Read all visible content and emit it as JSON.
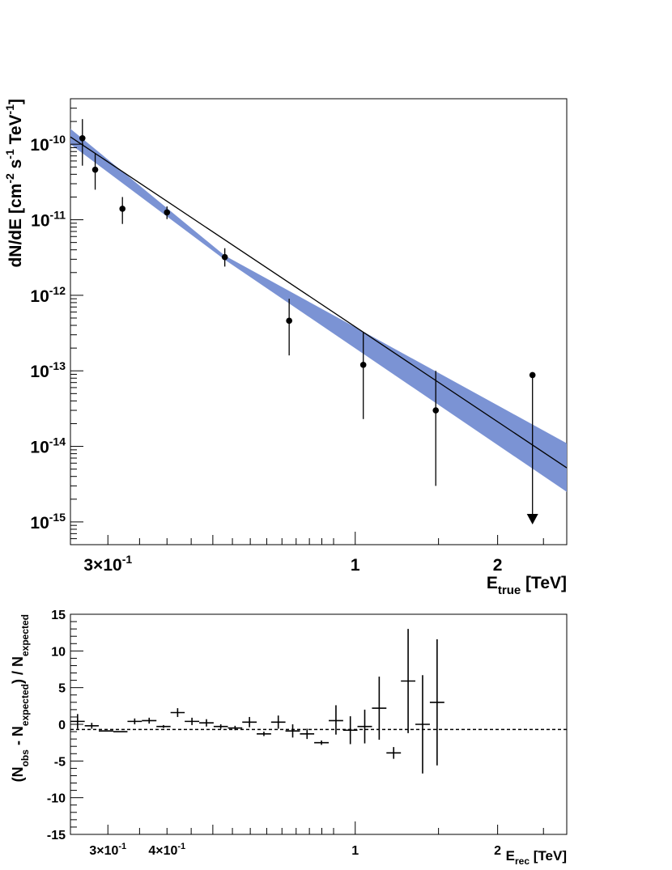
{
  "chart_data": [
    {
      "type": "scatter",
      "title": "",
      "xlabel": "E",
      "xlabel_sub": "true",
      "xlabel_unit": "[TeV]",
      "ylabel": "dN/dE [cm",
      "ylabel_parts": [
        "dN/dE [cm",
        "-2",
        " s",
        "-1",
        " TeV",
        "-1",
        "]"
      ],
      "xscale": "log",
      "yscale": "log",
      "xlim": [
        0.25,
        2.8
      ],
      "ylim": [
        5e-16,
        4e-10
      ],
      "x_tick_labels": [
        {
          "value": 0.3,
          "mant": "3",
          "exp": "-1"
        },
        {
          "value": 1,
          "text": "1"
        },
        {
          "value": 2,
          "text": "2"
        }
      ],
      "y_tick_labels": [
        {
          "value": 1e-15,
          "exp": "-15"
        },
        {
          "value": 1e-14,
          "exp": "-14"
        },
        {
          "value": 1e-13,
          "exp": "-13"
        },
        {
          "value": 1e-12,
          "exp": "-12"
        },
        {
          "value": 1e-11,
          "exp": "-11"
        },
        {
          "value": 1e-10,
          "exp": "-10"
        }
      ],
      "points": [
        {
          "x": 0.265,
          "y": 1.2e-10,
          "ylo": 5.2e-11,
          "yhi": 2.15e-10
        },
        {
          "x": 0.282,
          "y": 4.6e-11,
          "ylo": 2.5e-11,
          "yhi": 7.5e-11
        },
        {
          "x": 0.322,
          "y": 1.4e-11,
          "ylo": 8.8e-12,
          "yhi": 2e-11
        },
        {
          "x": 0.4,
          "y": 1.25e-11,
          "ylo": 1.02e-11,
          "yhi": 1.5e-11
        },
        {
          "x": 0.53,
          "y": 3.2e-12,
          "ylo": 2.4e-12,
          "yhi": 4.2e-12
        },
        {
          "x": 0.725,
          "y": 4.6e-13,
          "ylo": 1.6e-13,
          "yhi": 9e-13
        },
        {
          "x": 1.04,
          "y": 1.2e-13,
          "ylo": 2.3e-14,
          "yhi": 3.2e-13
        },
        {
          "x": 1.48,
          "y": 3e-14,
          "ylo": 3e-15,
          "yhi": 1e-13
        }
      ],
      "upper_limits": [
        {
          "x": 2.37,
          "y": 8.8e-14,
          "arrow_to": 9.5e-16
        }
      ],
      "fit_line": {
        "x": [
          0.25,
          2.8
        ],
        "y": [
          1.25e-10,
          5.2e-15
        ],
        "color": "#000000"
      },
      "fit_band": {
        "x": [
          0.25,
          0.53,
          2.8
        ],
        "y_lo": [
          1e-10,
          2.95e-12,
          2.5e-15
        ],
        "y_hi": [
          1.6e-10,
          3.35e-12,
          1.1e-14
        ],
        "color": "#7b93d4"
      }
    },
    {
      "type": "scatter",
      "title": "",
      "xlabel": "E",
      "xlabel_sub": "rec",
      "xlabel_unit": "[TeV]",
      "ylabel_parts": [
        "(N",
        "obs",
        " - N",
        "expected",
        ") / N",
        "expected"
      ],
      "xscale": "log",
      "yscale": "linear",
      "xlim": [
        0.25,
        2.8
      ],
      "ylim": [
        -15,
        15
      ],
      "x_tick_labels": [
        {
          "value": 0.3,
          "mant": "3",
          "exp": "-1"
        },
        {
          "value": 0.4,
          "mant": "4",
          "exp": "-1"
        },
        {
          "value": 1,
          "text": "1"
        },
        {
          "value": 2,
          "text": "2"
        }
      ],
      "y_tick_labels": [
        {
          "value": 15,
          "text": "15"
        },
        {
          "value": 10,
          "text": "10"
        },
        {
          "value": 5,
          "text": "5"
        },
        {
          "value": 0,
          "text": "0"
        },
        {
          "value": -5,
          "text": "-5"
        },
        {
          "value": -10,
          "text": "-10"
        },
        {
          "value": -15,
          "text": "-15"
        }
      ],
      "reference_line": {
        "y": -0.7,
        "style": "dashed"
      },
      "points": [
        {
          "xlo": 0.25,
          "xhi": 0.268,
          "y": 0.4,
          "ylo": -0.6,
          "yhi": 1.4
        },
        {
          "xlo": 0.268,
          "xhi": 0.287,
          "y": -0.2,
          "ylo": -0.6,
          "yhi": 0.2
        },
        {
          "xlo": 0.287,
          "xhi": 0.308,
          "y": -0.9,
          "ylo": -0.9,
          "yhi": -0.9
        },
        {
          "xlo": 0.308,
          "xhi": 0.33,
          "y": -1.0,
          "ylo": -1.0,
          "yhi": -1.0
        },
        {
          "xlo": 0.33,
          "xhi": 0.354,
          "y": 0.4,
          "ylo": 0.0,
          "yhi": 0.8
        },
        {
          "xlo": 0.354,
          "xhi": 0.38,
          "y": 0.5,
          "ylo": 0.1,
          "yhi": 0.9
        },
        {
          "xlo": 0.38,
          "xhi": 0.407,
          "y": -0.3,
          "ylo": -0.5,
          "yhi": -0.1
        },
        {
          "xlo": 0.407,
          "xhi": 0.436,
          "y": 1.6,
          "ylo": 1.0,
          "yhi": 2.2
        },
        {
          "xlo": 0.436,
          "xhi": 0.468,
          "y": 0.4,
          "ylo": -0.1,
          "yhi": 0.9
        },
        {
          "xlo": 0.468,
          "xhi": 0.502,
          "y": 0.2,
          "ylo": -0.3,
          "yhi": 0.7
        },
        {
          "xlo": 0.502,
          "xhi": 0.538,
          "y": -0.3,
          "ylo": -0.6,
          "yhi": 0.0
        },
        {
          "xlo": 0.538,
          "xhi": 0.577,
          "y": -0.5,
          "ylo": -0.8,
          "yhi": -0.2
        },
        {
          "xlo": 0.577,
          "xhi": 0.619,
          "y": 0.3,
          "ylo": -0.4,
          "yhi": 1.0
        },
        {
          "xlo": 0.619,
          "xhi": 0.664,
          "y": -1.3,
          "ylo": -1.6,
          "yhi": -1.0
        },
        {
          "xlo": 0.664,
          "xhi": 0.712,
          "y": 0.3,
          "ylo": -0.6,
          "yhi": 1.2
        },
        {
          "xlo": 0.712,
          "xhi": 0.764,
          "y": -0.9,
          "ylo": -1.8,
          "yhi": 0.0
        },
        {
          "xlo": 0.764,
          "xhi": 0.819,
          "y": -1.3,
          "ylo": -2.0,
          "yhi": -0.6
        },
        {
          "xlo": 0.819,
          "xhi": 0.879,
          "y": -2.5,
          "ylo": -2.8,
          "yhi": -2.2
        },
        {
          "xlo": 0.879,
          "xhi": 0.943,
          "y": 0.5,
          "ylo": -1.4,
          "yhi": 2.6
        },
        {
          "xlo": 0.943,
          "xhi": 1.011,
          "y": -0.8,
          "ylo": -2.7,
          "yhi": 1.1
        },
        {
          "xlo": 1.011,
          "xhi": 1.085,
          "y": -0.3,
          "ylo": -2.6,
          "yhi": 2.0
        },
        {
          "xlo": 1.085,
          "xhi": 1.164,
          "y": 2.2,
          "ylo": -2.1,
          "yhi": 6.5
        },
        {
          "xlo": 1.164,
          "xhi": 1.249,
          "y": -3.9,
          "ylo": -4.7,
          "yhi": -3.1
        },
        {
          "xlo": 1.249,
          "xhi": 1.34,
          "y": 5.9,
          "ylo": -1.2,
          "yhi": 13.0
        },
        {
          "xlo": 1.34,
          "xhi": 1.438,
          "y": 0.0,
          "ylo": -6.7,
          "yhi": 6.7
        },
        {
          "xlo": 1.438,
          "xhi": 1.543,
          "y": 3.0,
          "ylo": -5.6,
          "yhi": 11.6
        }
      ]
    }
  ]
}
